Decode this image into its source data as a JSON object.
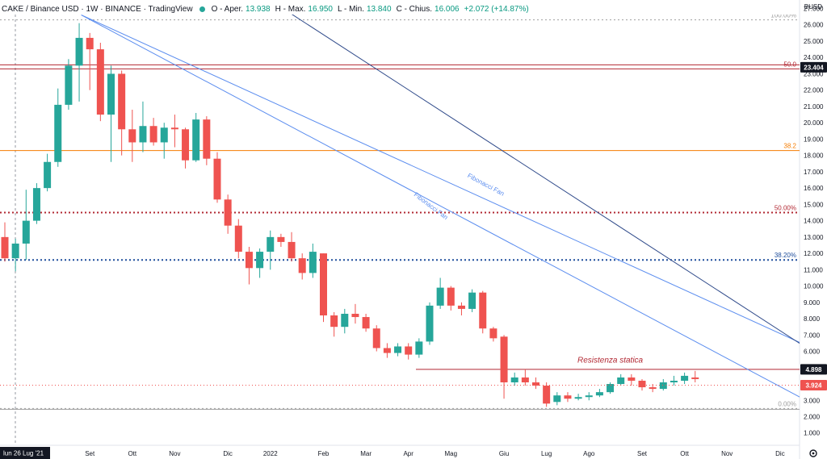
{
  "header": {
    "symbol": "CAKE / Binance USD · 1W · BINANCE · TradingView",
    "o_label": "O - Aper.",
    "o_value": "13.938",
    "h_label": "H - Max.",
    "h_value": "16.950",
    "l_label": "L - Min.",
    "l_value": "13.840",
    "c_label": "C - Chius.",
    "c_value": "16.006",
    "change": "+2.072 (+14.87%)"
  },
  "currency": "BUSD",
  "colors": {
    "up": "#26a69a",
    "down": "#ef5350",
    "fan": "#5b8def",
    "trend": "#2f4a8a",
    "orange": "#f57c00",
    "red": "#b22833",
    "blue": "#1f4e9c",
    "grey": "#9e9e9e"
  },
  "chart_data": {
    "type": "candlestick",
    "ylim": [
      1.0,
      27.0
    ],
    "y_ticks": [
      "1.000",
      "2.000",
      "3.000",
      "4.000",
      "5.000",
      "6.000",
      "7.000",
      "8.000",
      "9.000",
      "10.000",
      "11.000",
      "12.000",
      "13.000",
      "14.000",
      "15.000",
      "16.000",
      "17.000",
      "18.000",
      "19.000",
      "20.000",
      "21.000",
      "22.000",
      "23.000",
      "24.000",
      "25.000",
      "26.000",
      "27.000"
    ],
    "x_labels": [
      {
        "label": "lun 26 Lug '21",
        "week": 2,
        "highlight": true
      },
      {
        "label": "Set",
        "week": 8
      },
      {
        "label": "Ott",
        "week": 12
      },
      {
        "label": "Nov",
        "week": 16
      },
      {
        "label": "Dic",
        "week": 21
      },
      {
        "label": "2022",
        "week": 25
      },
      {
        "label": "Feb",
        "week": 30
      },
      {
        "label": "Mar",
        "week": 34
      },
      {
        "label": "Apr",
        "week": 38
      },
      {
        "label": "Mag",
        "week": 42
      },
      {
        "label": "Giu",
        "week": 47
      },
      {
        "label": "Lug",
        "week": 51
      },
      {
        "label": "Ago",
        "week": 55
      },
      {
        "label": "Set",
        "week": 60
      },
      {
        "label": "Ott",
        "week": 64
      },
      {
        "label": "Nov",
        "week": 68
      },
      {
        "label": "Dic",
        "week": 73
      }
    ],
    "candles": [
      [
        13.0,
        11.7,
        13.9,
        11.5
      ],
      [
        11.7,
        12.6,
        12.9,
        10.9
      ],
      [
        12.6,
        14.0,
        15.9,
        11.6
      ],
      [
        14.0,
        16.0,
        16.3,
        13.8
      ],
      [
        16.0,
        17.6,
        18.1,
        15.8
      ],
      [
        17.6,
        21.1,
        22.1,
        17.3
      ],
      [
        21.1,
        23.5,
        23.9,
        20.8
      ],
      [
        23.5,
        25.2,
        26.1,
        21.3
      ],
      [
        25.2,
        24.5,
        25.5,
        22.0
      ],
      [
        24.5,
        20.5,
        24.9,
        20.1
      ],
      [
        20.5,
        23.0,
        23.5,
        17.6
      ],
      [
        23.0,
        19.6,
        23.2,
        18.0
      ],
      [
        19.6,
        18.8,
        20.8,
        17.6
      ],
      [
        18.8,
        19.8,
        21.3,
        18.2
      ],
      [
        19.8,
        18.8,
        20.3,
        18.6
      ],
      [
        18.8,
        19.7,
        20.0,
        17.8
      ],
      [
        19.7,
        19.6,
        20.5,
        18.5
      ],
      [
        19.6,
        17.7,
        19.7,
        17.2
      ],
      [
        17.7,
        20.2,
        20.6,
        17.6
      ],
      [
        20.2,
        17.8,
        20.4,
        17.4
      ],
      [
        17.8,
        15.3,
        18.2,
        15.1
      ],
      [
        15.3,
        13.7,
        15.6,
        13.2
      ],
      [
        13.7,
        12.1,
        14.1,
        11.7
      ],
      [
        12.1,
        11.1,
        12.4,
        10.1
      ],
      [
        11.1,
        12.1,
        12.3,
        10.5
      ],
      [
        12.1,
        13.0,
        13.4,
        11.0
      ],
      [
        13.0,
        12.7,
        13.2,
        12.4
      ],
      [
        12.7,
        11.7,
        13.3,
        11.5
      ],
      [
        11.7,
        10.8,
        12.0,
        10.4
      ],
      [
        10.8,
        12.1,
        12.6,
        10.5
      ],
      [
        12.0,
        8.2,
        12.0,
        7.8
      ],
      [
        8.2,
        7.5,
        8.4,
        6.9
      ],
      [
        7.5,
        8.3,
        8.6,
        7.1
      ],
      [
        8.3,
        8.1,
        8.9,
        7.7
      ],
      [
        8.1,
        7.4,
        8.3,
        7.2
      ],
      [
        7.4,
        6.2,
        7.6,
        6.0
      ],
      [
        6.2,
        5.9,
        6.5,
        5.6
      ],
      [
        5.9,
        6.3,
        6.5,
        5.7
      ],
      [
        6.3,
        5.8,
        6.5,
        5.5
      ],
      [
        5.8,
        6.6,
        6.8,
        5.6
      ],
      [
        6.6,
        8.8,
        9.0,
        6.4
      ],
      [
        8.8,
        9.9,
        10.5,
        8.6
      ],
      [
        9.9,
        8.8,
        10.0,
        8.5
      ],
      [
        8.8,
        8.6,
        9.0,
        8.2
      ],
      [
        8.6,
        9.6,
        9.8,
        8.4
      ],
      [
        9.6,
        7.4,
        9.7,
        7.1
      ],
      [
        7.4,
        6.8,
        7.5,
        6.6
      ],
      [
        6.9,
        4.1,
        7.0,
        3.1
      ],
      [
        4.1,
        4.4,
        4.7,
        3.9
      ],
      [
        4.4,
        4.1,
        4.9,
        3.9
      ],
      [
        4.1,
        3.9,
        4.4,
        3.7
      ],
      [
        3.9,
        2.8,
        4.1,
        2.6
      ],
      [
        2.9,
        3.3,
        3.5,
        2.7
      ],
      [
        3.3,
        3.1,
        3.5,
        2.9
      ],
      [
        3.1,
        3.2,
        3.4,
        3.0
      ],
      [
        3.2,
        3.3,
        3.5,
        3.0
      ],
      [
        3.3,
        3.5,
        3.7,
        3.2
      ],
      [
        3.5,
        4.0,
        4.1,
        3.4
      ],
      [
        4.0,
        4.4,
        4.6,
        3.9
      ],
      [
        4.4,
        4.2,
        4.6,
        3.9
      ],
      [
        4.2,
        3.8,
        4.3,
        3.6
      ],
      [
        3.8,
        3.7,
        4.0,
        3.5
      ],
      [
        3.7,
        4.1,
        4.3,
        3.6
      ],
      [
        4.1,
        4.2,
        4.5,
        3.9
      ],
      [
        4.2,
        4.5,
        4.7,
        4.0
      ],
      [
        4.4,
        4.3,
        4.8,
        4.1
      ]
    ],
    "hlines": [
      {
        "y": 26.3,
        "color": "grey",
        "style": "dotted",
        "x_from": "start",
        "label": "100.00%"
      },
      {
        "y": 23.3,
        "color": "red",
        "style": "solid",
        "x_from": "start",
        "label": "50.0"
      },
      {
        "y": 23.55,
        "color": "red",
        "style": "solid",
        "x_from": "start",
        "label": ""
      },
      {
        "y": 18.3,
        "color": "orange",
        "style": "solid",
        "x_from": "start",
        "label": "38.2"
      },
      {
        "y": 14.5,
        "color": "red",
        "style": "dotted",
        "x_from": "start",
        "label": "50.00%"
      },
      {
        "y": 11.6,
        "color": "blue",
        "style": "dotted",
        "x_from": "start",
        "label": "38.20%"
      },
      {
        "y": 2.5,
        "color": "grey",
        "style": "dotted",
        "x_from": "start",
        "label": "0.00%"
      },
      {
        "y": 2.45,
        "color": "grey",
        "style": "solid",
        "x_from": "start",
        "label": ""
      },
      {
        "y": 4.898,
        "color": "red",
        "style": "solid",
        "x_from": "resistance",
        "label": ""
      }
    ],
    "fan_lines": [
      {
        "x0": 7.2,
        "y0": 26.6,
        "x1": 76.0,
        "y1": 6.2,
        "color": "fan"
      },
      {
        "x0": 7.2,
        "y0": 26.6,
        "x1": 76.0,
        "y1": 2.8,
        "color": "fan"
      },
      {
        "x0": 25.0,
        "y0": 27.5,
        "x1": 76.0,
        "y1": 6.0,
        "color": "trend"
      }
    ],
    "annotations": [
      {
        "text": "Fibonacci Fan",
        "x": 45.2,
        "y": 16.1,
        "angle": 28,
        "color": "fan"
      },
      {
        "text": "Fibonacci Fan",
        "x": 40.0,
        "y": 14.8,
        "angle": 37,
        "color": "fan"
      },
      {
        "text": "Resistenza statica",
        "x": 57.0,
        "y": 5.3,
        "angle": 0,
        "color": "red",
        "italic": true
      }
    ],
    "price_labels": [
      {
        "value": "23.404",
        "y": 23.4,
        "bg": "#131722"
      },
      {
        "value": "4.898",
        "y": 4.898,
        "bg": "#131722"
      },
      {
        "value": "3.924",
        "y": 3.924,
        "bg": "#ef5350"
      }
    ],
    "current_price": 3.924
  }
}
